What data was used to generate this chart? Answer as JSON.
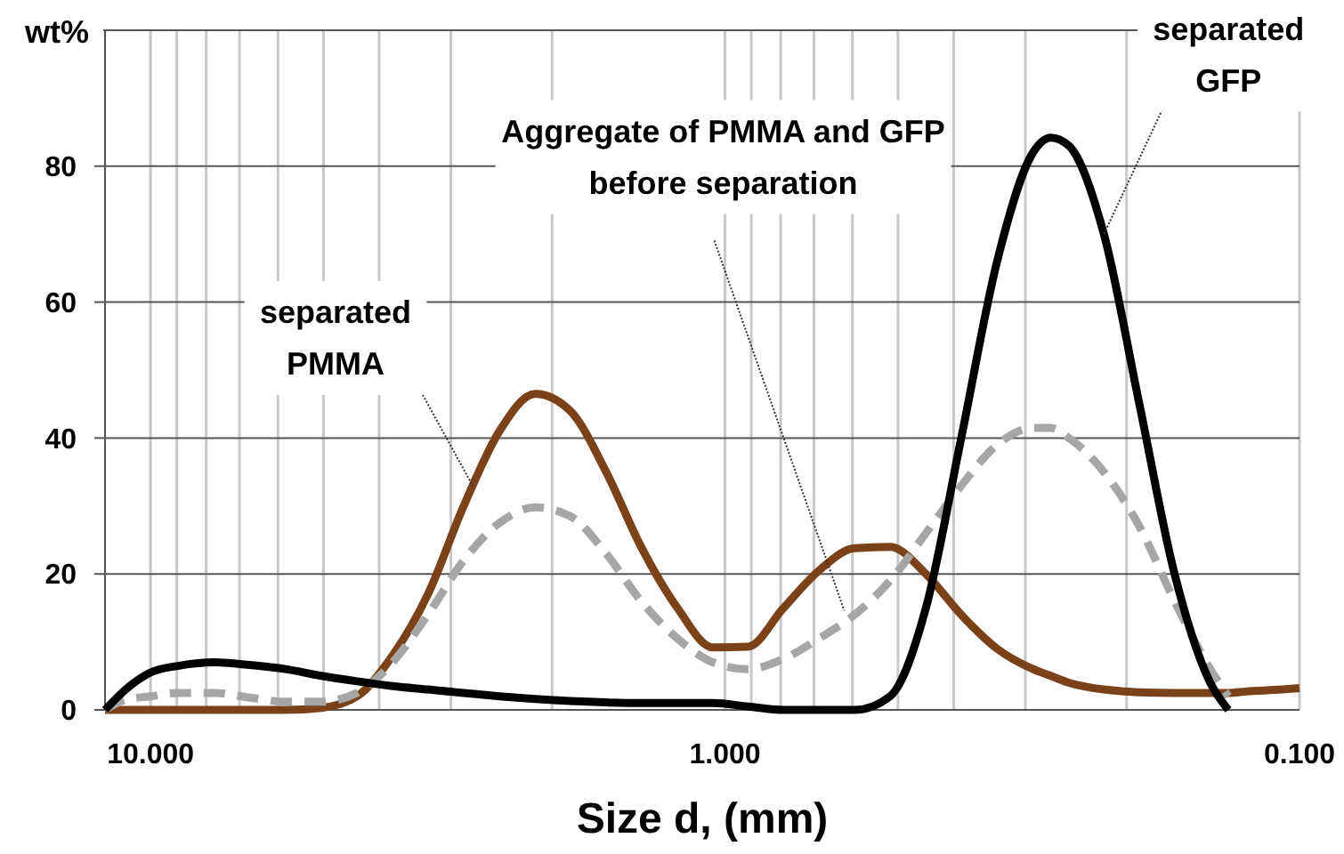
{
  "chart_data": {
    "type": "line",
    "xlabel": "Size d, (mm)",
    "ylabel": "wt%",
    "log": "x",
    "grid": true,
    "marker": "none",
    "xlim": [
      12,
      0.1
    ],
    "ylim": [
      0,
      100
    ],
    "xticks": [
      {
        "value": 10,
        "label": "10.000"
      },
      {
        "value": 9,
        "label": null
      },
      {
        "value": 8,
        "label": null
      },
      {
        "value": 7,
        "label": null
      },
      {
        "value": 6,
        "label": null
      },
      {
        "value": 5,
        "label": null
      },
      {
        "value": 4,
        "label": null
      },
      {
        "value": 3,
        "label": null
      },
      {
        "value": 2,
        "label": null
      },
      {
        "value": 1,
        "label": "1.000"
      },
      {
        "value": 0.9,
        "label": null
      },
      {
        "value": 0.8,
        "label": null
      },
      {
        "value": 0.7,
        "label": null
      },
      {
        "value": 0.6,
        "label": null
      },
      {
        "value": 0.5,
        "label": null
      },
      {
        "value": 0.4,
        "label": null
      },
      {
        "value": 0.3,
        "label": null
      },
      {
        "value": 0.2,
        "label": null
      },
      {
        "value": 0.1,
        "label": "0.100"
      }
    ],
    "yticks": [
      0,
      20,
      40,
      60,
      80,
      {
        "value": 100,
        "label": null
      }
    ],
    "x": [
      12,
      11.05,
      10,
      8.92,
      7.74,
      6.71,
      5.82,
      5.04,
      4.37,
      3.79,
      3.29,
      2.85,
      2.47,
      2.14,
      1.86,
      1.61,
      1.4,
      1.21,
      1.05,
      0.912,
      0.791,
      0.686,
      0.595,
      0.516,
      0.447,
      0.388,
      0.336,
      0.291,
      0.271,
      0.252,
      0.219,
      0.19,
      0.165,
      0.143,
      0.133,
      0.124,
      0.107,
      0.1
    ],
    "series": [
      {
        "color": "#7b4219",
        "line_style": "solid",
        "values": [
          0,
          0,
          0,
          0,
          0,
          0,
          0,
          0.3,
          2,
          8,
          17,
          30,
          41,
          46.5,
          44,
          35,
          24,
          15,
          9.2,
          9.3,
          15,
          20.5,
          23.8,
          24,
          20,
          14,
          9,
          6,
          5,
          4,
          3,
          2.6,
          2.5,
          2.5,
          2.5,
          2.7,
          3,
          3.2
        ]
      },
      {
        "color": "#a6a6a6",
        "line_style": "dashed",
        "values": [
          0,
          1.5,
          2,
          2.5,
          2.5,
          1.8,
          1.2,
          1.2,
          2.5,
          7,
          14,
          22,
          27.5,
          29.8,
          28.5,
          23,
          16,
          10.5,
          7,
          6,
          7.5,
          10.5,
          14,
          19,
          26,
          33,
          39,
          41.5,
          41.5,
          40,
          35,
          27,
          16,
          6,
          2,
          null,
          null,
          null
        ]
      },
      {
        "color": "#000000",
        "line_style": "solid",
        "values": [
          0,
          3,
          5.5,
          6.5,
          7,
          6.6,
          6,
          5,
          4.2,
          3.5,
          3,
          2.5,
          2,
          1.6,
          1.3,
          1.1,
          1,
          1,
          1,
          0.5,
          0,
          0,
          0,
          2,
          15,
          40,
          66,
          82,
          84.2,
          83,
          70,
          45,
          20,
          4,
          0,
          null,
          null,
          null
        ]
      }
    ],
    "annotations": [
      {
        "text": "separated\nPMMA",
        "x": 2.75,
        "y": 33
      },
      {
        "text": "Aggregate of PMMA and GFP\nbefore separation",
        "x": 0.62,
        "y": 14.6
      },
      {
        "text": "separated\nGFP",
        "x": 0.219,
        "y": 70
      }
    ]
  }
}
